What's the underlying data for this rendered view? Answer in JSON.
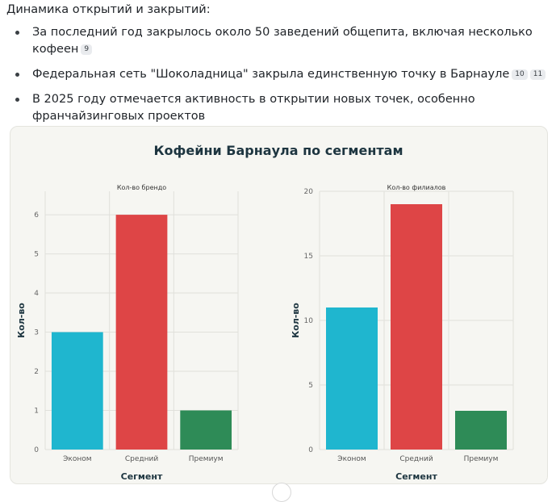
{
  "section": {
    "heading": "Динамика открытий и закрытий:",
    "bullets": [
      {
        "text": "За последний год закрылось около 50 заведений общепита, включая несколько кофеен",
        "cites": [
          "9"
        ]
      },
      {
        "text": "Федеральная сеть \"Шоколадница\" закрыла единственную точку в Барнауле",
        "cites": [
          "10",
          "11"
        ]
      },
      {
        "text": "В 2025 году отмечается активность в открытии новых точек, особенно франчайзинговых проектов",
        "cites": []
      }
    ]
  },
  "chart_data": {
    "type": "bar",
    "title": "Кофейни Барнаула по сегментам",
    "categories": [
      "Эконом",
      "Средний",
      "Премиум"
    ],
    "colors": [
      "#1fb6cf",
      "#de4546",
      "#2e8b57"
    ],
    "xlabel": "Сегмент",
    "ylabel": "Кол-во",
    "grid": true,
    "panels": [
      {
        "subtitle": "Кол-во брендо",
        "values": [
          3,
          6,
          1
        ],
        "ylim": [
          0,
          6.6
        ],
        "yticks": [
          0,
          1,
          2,
          3,
          4,
          5,
          6
        ]
      },
      {
        "subtitle": "Кол-во филиалов",
        "values": [
          11,
          19,
          3
        ],
        "ylim": [
          0,
          20
        ],
        "yticks": [
          0,
          5,
          10,
          15,
          20
        ]
      }
    ]
  }
}
